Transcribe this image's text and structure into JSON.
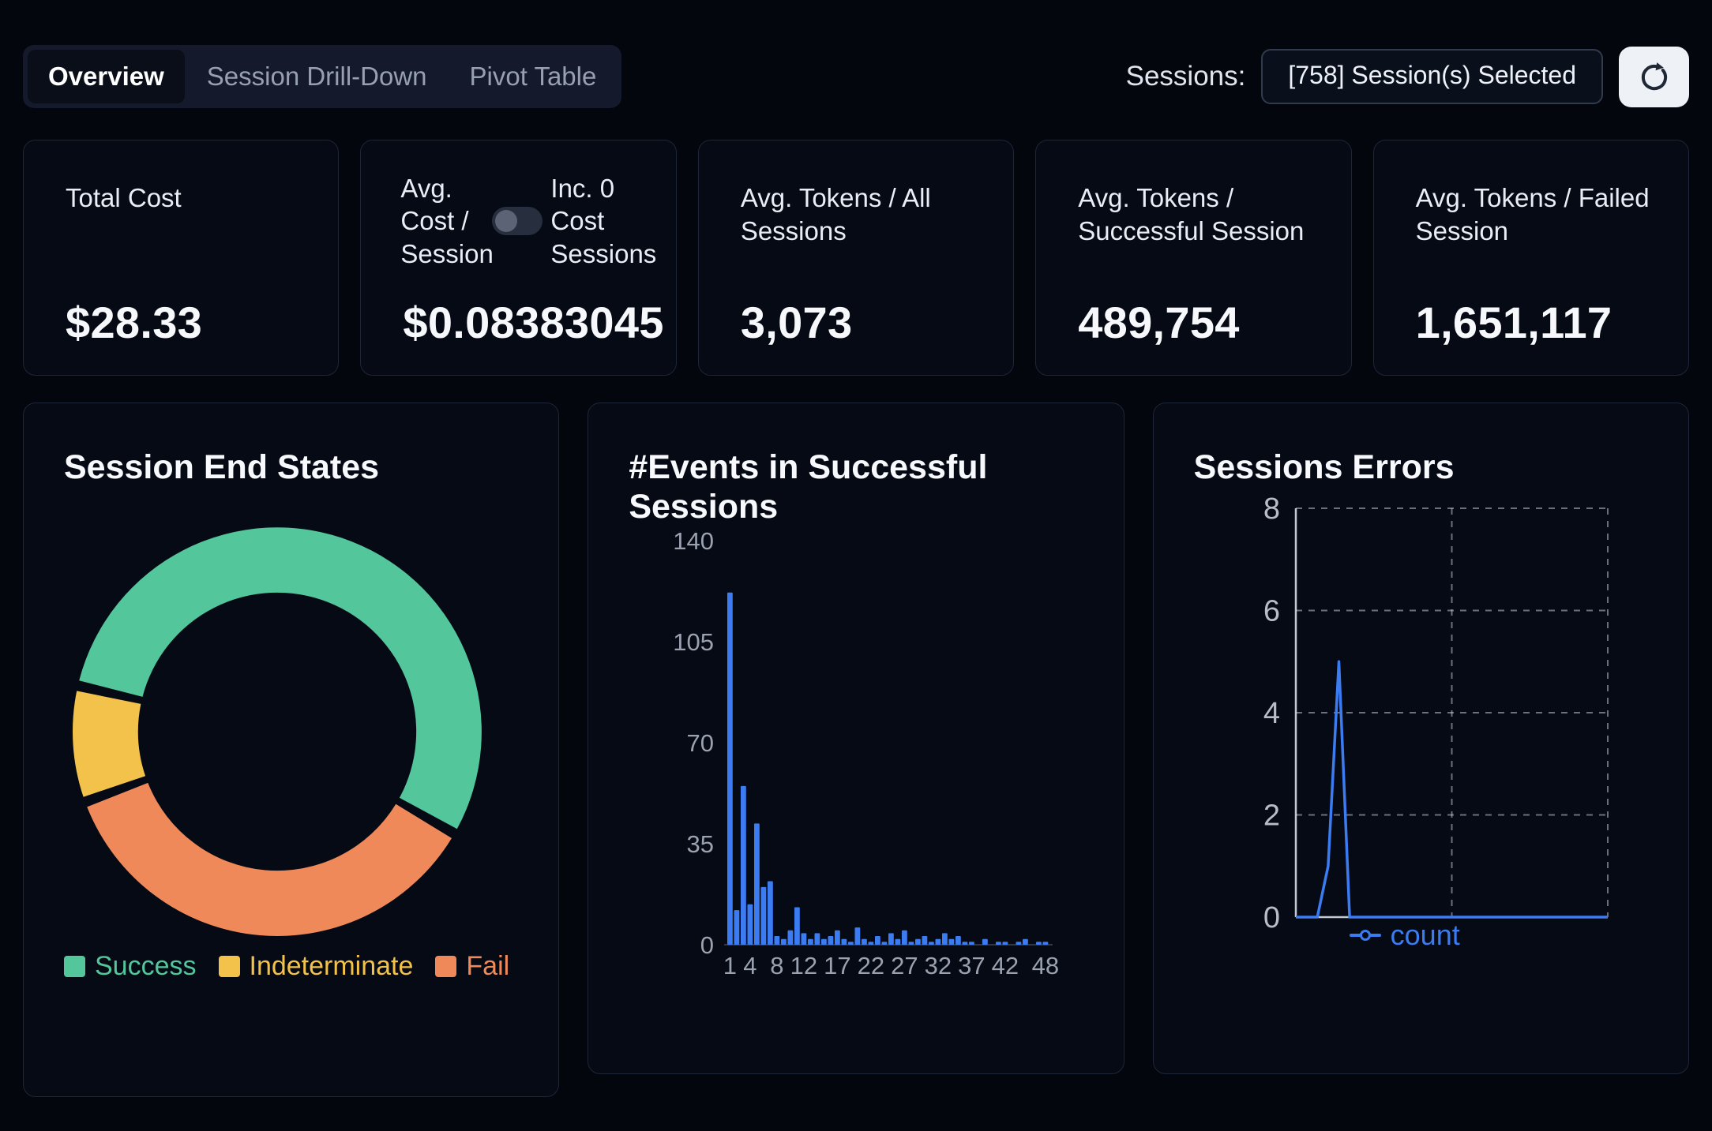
{
  "header": {
    "tabs": [
      {
        "label": "Overview",
        "active": true
      },
      {
        "label": "Session Drill-Down",
        "active": false
      },
      {
        "label": "Pivot Table",
        "active": false
      }
    ],
    "sessions_label": "Sessions:",
    "sessions_selected": "[758] Session(s) Selected"
  },
  "stat_cards": [
    {
      "label": "Total Cost",
      "value": "$28.33"
    },
    {
      "label": "Avg. Cost / Session",
      "toggle": {
        "label": "Inc. 0 Cost Sessions",
        "on": false
      },
      "value": "$0.08383045"
    },
    {
      "label": "Avg. Tokens / All Sessions",
      "value": "3,073"
    },
    {
      "label": "Avg. Tokens / Successful Session",
      "value": "489,754"
    },
    {
      "label": "Avg. Tokens / Failed Session",
      "value": "1,651,117"
    }
  ],
  "chart_data": [
    {
      "type": "pie",
      "variant": "donut",
      "title": "Session End States",
      "slices": [
        {
          "label": "Success",
          "value": 54.7,
          "color": "#53c69b"
        },
        {
          "label": "Fail",
          "value": 36.1,
          "color": "#f0895a"
        },
        {
          "label": "Indeterminate",
          "value": 9.2,
          "color": "#f2c24a"
        }
      ],
      "legend": [
        {
          "label": "Success",
          "color": "#53c69b"
        },
        {
          "label": "Indeterminate",
          "color": "#f2c24a"
        },
        {
          "label": "Fail",
          "color": "#f0895a"
        }
      ],
      "start_angle_deg": 283,
      "pad_angle_deg": 3,
      "inner_radius_ratio": 0.68,
      "legend_position": "bottom"
    },
    {
      "type": "bar",
      "title": "#Events in Successful Sessions",
      "x_bins_range": [
        1,
        48
      ],
      "values": [
        122,
        12,
        55,
        14,
        42,
        20,
        22,
        3,
        2,
        5,
        13,
        4,
        2,
        4,
        2,
        3,
        5,
        2,
        1,
        6,
        2,
        1,
        3,
        1,
        4,
        2,
        5,
        1,
        2,
        3,
        1,
        2,
        4,
        2,
        3,
        1,
        1,
        0,
        2,
        0,
        1,
        1,
        0,
        1,
        2,
        0,
        1,
        1
      ],
      "x_tick_labels": [
        "1",
        "4",
        "8",
        "12",
        "17",
        "22",
        "27",
        "32",
        "37",
        "42",
        "48"
      ],
      "y_ticks": [
        0,
        35,
        70,
        105,
        140
      ],
      "ylim": [
        0,
        140
      ],
      "bar_color": "#3b7cf2",
      "grid": "off"
    },
    {
      "type": "line",
      "title": "Sessions Errors",
      "series": [
        {
          "name": "count",
          "color": "#3b7cf2",
          "values": [
            0,
            0,
            0,
            1,
            5,
            0,
            0,
            0,
            0,
            0,
            0,
            0,
            0,
            0,
            0,
            0,
            0,
            0,
            0,
            0,
            0,
            0,
            0,
            0,
            0,
            0,
            0,
            0,
            0,
            0
          ]
        }
      ],
      "y_ticks": [
        0,
        2,
        4,
        6,
        8
      ],
      "ylim": [
        0,
        8
      ],
      "grid": "dashed",
      "legend_position": "bottom"
    }
  ]
}
